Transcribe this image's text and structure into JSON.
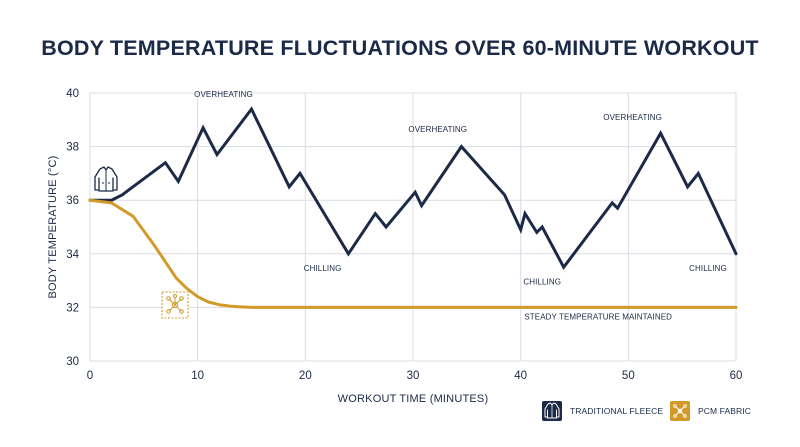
{
  "chart_data": {
    "type": "line",
    "title": "BODY TEMPERATURE FLUCTUATIONS OVER 60-MINUTE WORKOUT",
    "xlabel": "WORKOUT TIME (MINUTES)",
    "ylabel": "BODY TEMPERATURE (°C)",
    "xlim": [
      0,
      60
    ],
    "ylim": [
      30,
      40
    ],
    "xticks": [
      0,
      10,
      20,
      30,
      40,
      50,
      60
    ],
    "yticks": [
      30,
      32,
      34,
      36,
      38,
      40
    ],
    "grid": true,
    "legend_position": "bottom-right",
    "series": [
      {
        "name": "TRADITIONAL FLEECE",
        "color": "#1b2a47",
        "icon": "jacket-icon",
        "x": [
          0,
          2,
          3,
          7,
          8.2,
          10.5,
          11.8,
          15,
          18.5,
          19.5,
          24,
          26.5,
          27.5,
          30.2,
          30.8,
          34.5,
          38.5,
          40,
          40.4,
          41.5,
          42,
          44,
          48.5,
          49,
          53,
          55.5,
          56.5,
          60
        ],
        "y": [
          36,
          36,
          36.2,
          37.4,
          36.7,
          38.7,
          37.7,
          39.4,
          36.5,
          37.0,
          34.0,
          35.5,
          35.0,
          36.3,
          35.8,
          38.0,
          36.2,
          34.9,
          35.5,
          34.8,
          35.0,
          33.5,
          35.9,
          35.7,
          38.5,
          36.5,
          37.0,
          34.0
        ]
      },
      {
        "name": "PCM FABRIC",
        "color": "#d19a2b",
        "icon": "molecule-icon",
        "x": [
          0,
          2,
          4,
          6,
          7,
          8,
          9,
          10,
          11,
          12,
          13,
          14,
          15,
          17,
          20,
          30,
          40,
          50,
          60
        ],
        "y": [
          36,
          35.9,
          35.4,
          34.3,
          33.7,
          33.1,
          32.7,
          32.4,
          32.2,
          32.1,
          32.05,
          32.02,
          32,
          32,
          32,
          32,
          32,
          32,
          32
        ]
      }
    ],
    "annotations": [
      {
        "text": "OVERHEATING",
        "x": 12.4,
        "y": 39.85
      },
      {
        "text": "OVERHEATING",
        "x": 32.3,
        "y": 38.55
      },
      {
        "text": "OVERHEATING",
        "x": 50.4,
        "y": 39.0
      },
      {
        "text": "CHILLING",
        "x": 21.6,
        "y": 33.35
      },
      {
        "text": "CHILLING",
        "x": 42.0,
        "y": 32.85
      },
      {
        "text": "CHILLING",
        "x": 57.4,
        "y": 33.35
      },
      {
        "text": "STEADY TEMPERATURE MAINTAINED",
        "x": 47.2,
        "y": 31.55
      }
    ]
  }
}
